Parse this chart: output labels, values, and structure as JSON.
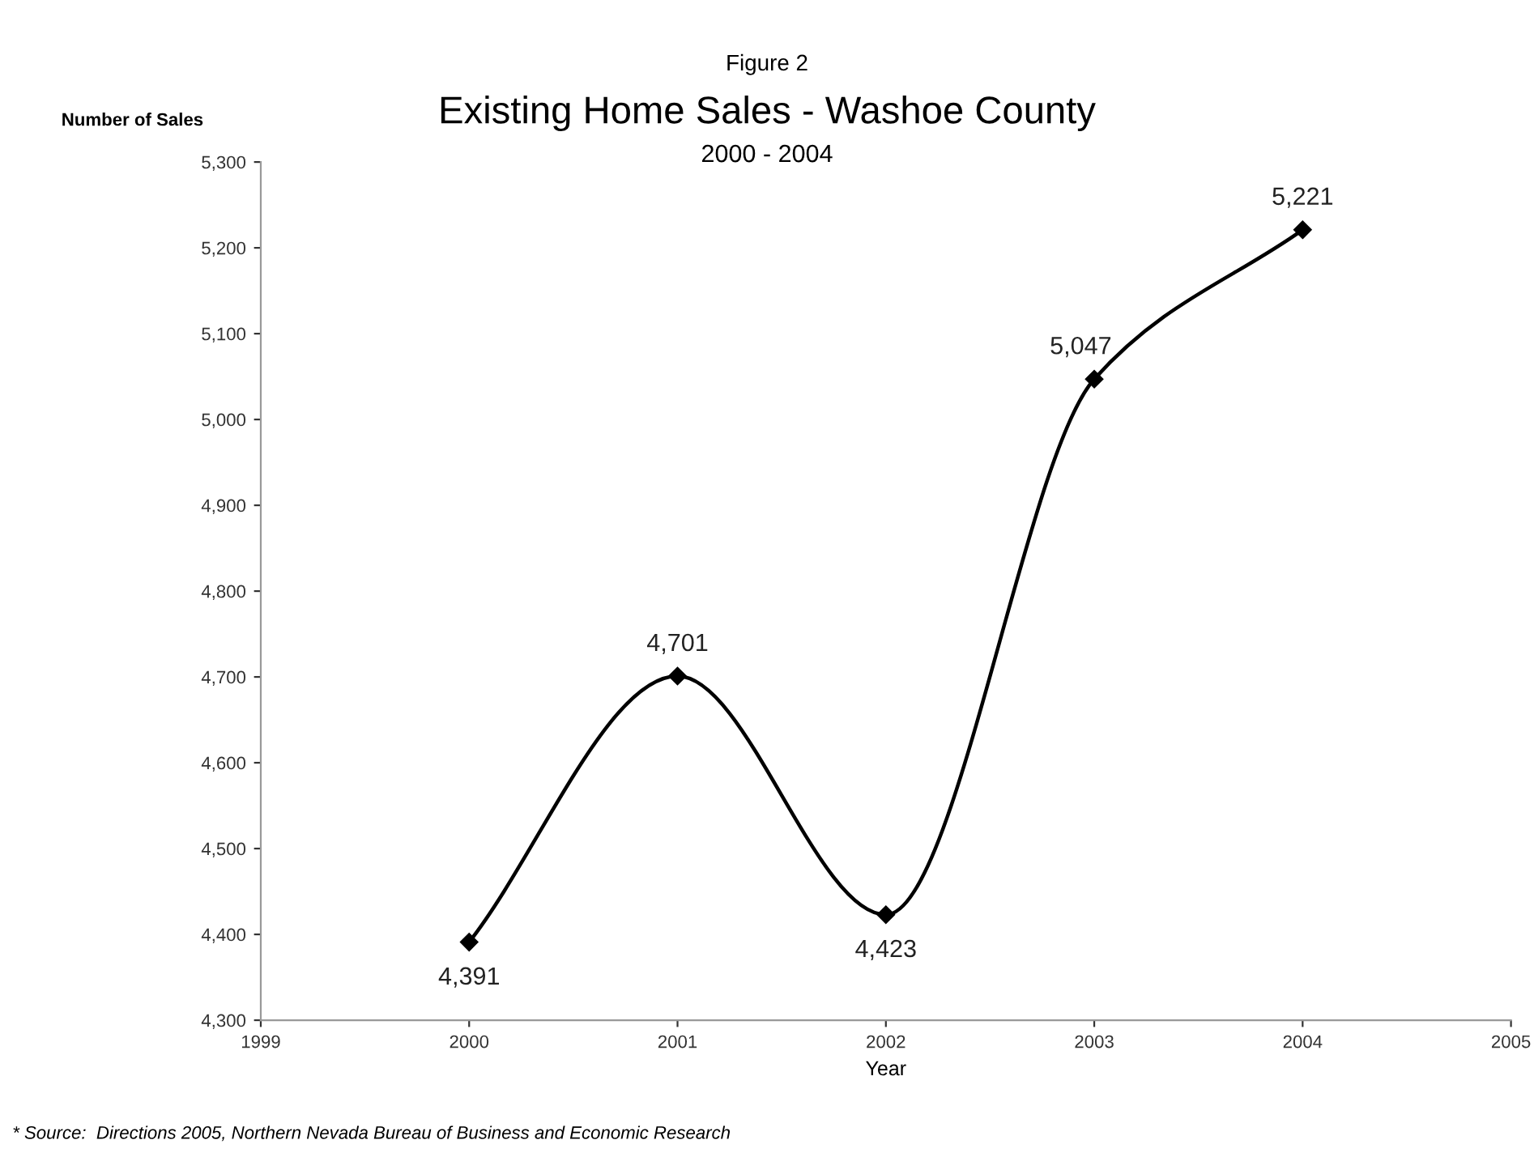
{
  "chart_data": {
    "type": "line",
    "title": "Existing Home Sales - Washoe County",
    "subtitle": "2000 - 2004",
    "xlabel": "Year",
    "ylabel": "Number of Sales",
    "annotations": [
      "Figure 2",
      "* Source:  Directions 2005, Northern Nevada Bureau of Business and Economic Research"
    ],
    "x": [
      2000,
      2001,
      2002,
      2003,
      2004
    ],
    "series": [
      {
        "color": "#000000",
        "values": [
          4391,
          4701,
          4423,
          5047,
          5221
        ],
        "value_labels": [
          "4,391",
          "4,701",
          "4,423",
          "5,047",
          "5,221"
        ]
      }
    ],
    "xlim": [
      1999,
      2005
    ],
    "xticks": [
      1999,
      2000,
      2001,
      2002,
      2003,
      2004,
      2005
    ],
    "ylim": [
      4300,
      5300
    ],
    "yticks": [
      {
        "value": 4300,
        "label": "4,300"
      },
      {
        "value": 4400,
        "label": "4,400"
      },
      {
        "value": 4500,
        "label": "4,500"
      },
      {
        "value": 4600,
        "label": "4,600"
      },
      {
        "value": 4700,
        "label": "4,700"
      },
      {
        "value": 4800,
        "label": "4,800"
      },
      {
        "value": 4900,
        "label": "4,900"
      },
      {
        "value": 5000,
        "label": "5,000"
      },
      {
        "value": 5100,
        "label": "5,100"
      },
      {
        "value": 5200,
        "label": "5,200"
      },
      {
        "value": 5300,
        "label": "5,300"
      }
    ],
    "grid": false,
    "legend": false,
    "marker": "diamond",
    "line_style": "solid"
  }
}
